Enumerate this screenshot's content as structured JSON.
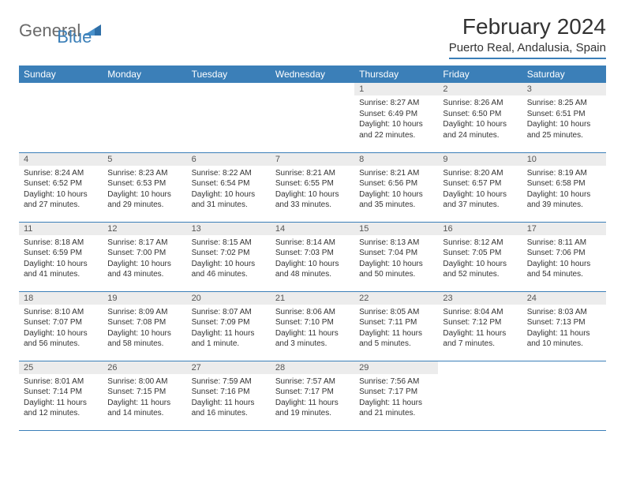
{
  "logo": {
    "text1": "General",
    "text2": "Blue"
  },
  "title": "February 2024",
  "location": "Puerto Real, Andalusia, Spain",
  "colors": {
    "accent": "#3b7fb8",
    "header_bg": "#3b7fb8",
    "daynum_bg": "#ececec",
    "text": "#333333",
    "logo_gray": "#6a6a6a"
  },
  "weekdays": [
    "Sunday",
    "Monday",
    "Tuesday",
    "Wednesday",
    "Thursday",
    "Friday",
    "Saturday"
  ],
  "weeks": [
    [
      {
        "empty": true
      },
      {
        "empty": true
      },
      {
        "empty": true
      },
      {
        "empty": true
      },
      {
        "num": "1",
        "sunrise": "Sunrise: 8:27 AM",
        "sunset": "Sunset: 6:49 PM",
        "daylight1": "Daylight: 10 hours",
        "daylight2": "and 22 minutes."
      },
      {
        "num": "2",
        "sunrise": "Sunrise: 8:26 AM",
        "sunset": "Sunset: 6:50 PM",
        "daylight1": "Daylight: 10 hours",
        "daylight2": "and 24 minutes."
      },
      {
        "num": "3",
        "sunrise": "Sunrise: 8:25 AM",
        "sunset": "Sunset: 6:51 PM",
        "daylight1": "Daylight: 10 hours",
        "daylight2": "and 25 minutes."
      }
    ],
    [
      {
        "num": "4",
        "sunrise": "Sunrise: 8:24 AM",
        "sunset": "Sunset: 6:52 PM",
        "daylight1": "Daylight: 10 hours",
        "daylight2": "and 27 minutes."
      },
      {
        "num": "5",
        "sunrise": "Sunrise: 8:23 AM",
        "sunset": "Sunset: 6:53 PM",
        "daylight1": "Daylight: 10 hours",
        "daylight2": "and 29 minutes."
      },
      {
        "num": "6",
        "sunrise": "Sunrise: 8:22 AM",
        "sunset": "Sunset: 6:54 PM",
        "daylight1": "Daylight: 10 hours",
        "daylight2": "and 31 minutes."
      },
      {
        "num": "7",
        "sunrise": "Sunrise: 8:21 AM",
        "sunset": "Sunset: 6:55 PM",
        "daylight1": "Daylight: 10 hours",
        "daylight2": "and 33 minutes."
      },
      {
        "num": "8",
        "sunrise": "Sunrise: 8:21 AM",
        "sunset": "Sunset: 6:56 PM",
        "daylight1": "Daylight: 10 hours",
        "daylight2": "and 35 minutes."
      },
      {
        "num": "9",
        "sunrise": "Sunrise: 8:20 AM",
        "sunset": "Sunset: 6:57 PM",
        "daylight1": "Daylight: 10 hours",
        "daylight2": "and 37 minutes."
      },
      {
        "num": "10",
        "sunrise": "Sunrise: 8:19 AM",
        "sunset": "Sunset: 6:58 PM",
        "daylight1": "Daylight: 10 hours",
        "daylight2": "and 39 minutes."
      }
    ],
    [
      {
        "num": "11",
        "sunrise": "Sunrise: 8:18 AM",
        "sunset": "Sunset: 6:59 PM",
        "daylight1": "Daylight: 10 hours",
        "daylight2": "and 41 minutes."
      },
      {
        "num": "12",
        "sunrise": "Sunrise: 8:17 AM",
        "sunset": "Sunset: 7:00 PM",
        "daylight1": "Daylight: 10 hours",
        "daylight2": "and 43 minutes."
      },
      {
        "num": "13",
        "sunrise": "Sunrise: 8:15 AM",
        "sunset": "Sunset: 7:02 PM",
        "daylight1": "Daylight: 10 hours",
        "daylight2": "and 46 minutes."
      },
      {
        "num": "14",
        "sunrise": "Sunrise: 8:14 AM",
        "sunset": "Sunset: 7:03 PM",
        "daylight1": "Daylight: 10 hours",
        "daylight2": "and 48 minutes."
      },
      {
        "num": "15",
        "sunrise": "Sunrise: 8:13 AM",
        "sunset": "Sunset: 7:04 PM",
        "daylight1": "Daylight: 10 hours",
        "daylight2": "and 50 minutes."
      },
      {
        "num": "16",
        "sunrise": "Sunrise: 8:12 AM",
        "sunset": "Sunset: 7:05 PM",
        "daylight1": "Daylight: 10 hours",
        "daylight2": "and 52 minutes."
      },
      {
        "num": "17",
        "sunrise": "Sunrise: 8:11 AM",
        "sunset": "Sunset: 7:06 PM",
        "daylight1": "Daylight: 10 hours",
        "daylight2": "and 54 minutes."
      }
    ],
    [
      {
        "num": "18",
        "sunrise": "Sunrise: 8:10 AM",
        "sunset": "Sunset: 7:07 PM",
        "daylight1": "Daylight: 10 hours",
        "daylight2": "and 56 minutes."
      },
      {
        "num": "19",
        "sunrise": "Sunrise: 8:09 AM",
        "sunset": "Sunset: 7:08 PM",
        "daylight1": "Daylight: 10 hours",
        "daylight2": "and 58 minutes."
      },
      {
        "num": "20",
        "sunrise": "Sunrise: 8:07 AM",
        "sunset": "Sunset: 7:09 PM",
        "daylight1": "Daylight: 11 hours",
        "daylight2": "and 1 minute."
      },
      {
        "num": "21",
        "sunrise": "Sunrise: 8:06 AM",
        "sunset": "Sunset: 7:10 PM",
        "daylight1": "Daylight: 11 hours",
        "daylight2": "and 3 minutes."
      },
      {
        "num": "22",
        "sunrise": "Sunrise: 8:05 AM",
        "sunset": "Sunset: 7:11 PM",
        "daylight1": "Daylight: 11 hours",
        "daylight2": "and 5 minutes."
      },
      {
        "num": "23",
        "sunrise": "Sunrise: 8:04 AM",
        "sunset": "Sunset: 7:12 PM",
        "daylight1": "Daylight: 11 hours",
        "daylight2": "and 7 minutes."
      },
      {
        "num": "24",
        "sunrise": "Sunrise: 8:03 AM",
        "sunset": "Sunset: 7:13 PM",
        "daylight1": "Daylight: 11 hours",
        "daylight2": "and 10 minutes."
      }
    ],
    [
      {
        "num": "25",
        "sunrise": "Sunrise: 8:01 AM",
        "sunset": "Sunset: 7:14 PM",
        "daylight1": "Daylight: 11 hours",
        "daylight2": "and 12 minutes."
      },
      {
        "num": "26",
        "sunrise": "Sunrise: 8:00 AM",
        "sunset": "Sunset: 7:15 PM",
        "daylight1": "Daylight: 11 hours",
        "daylight2": "and 14 minutes."
      },
      {
        "num": "27",
        "sunrise": "Sunrise: 7:59 AM",
        "sunset": "Sunset: 7:16 PM",
        "daylight1": "Daylight: 11 hours",
        "daylight2": "and 16 minutes."
      },
      {
        "num": "28",
        "sunrise": "Sunrise: 7:57 AM",
        "sunset": "Sunset: 7:17 PM",
        "daylight1": "Daylight: 11 hours",
        "daylight2": "and 19 minutes."
      },
      {
        "num": "29",
        "sunrise": "Sunrise: 7:56 AM",
        "sunset": "Sunset: 7:17 PM",
        "daylight1": "Daylight: 11 hours",
        "daylight2": "and 21 minutes."
      },
      {
        "empty": true
      },
      {
        "empty": true
      }
    ]
  ]
}
